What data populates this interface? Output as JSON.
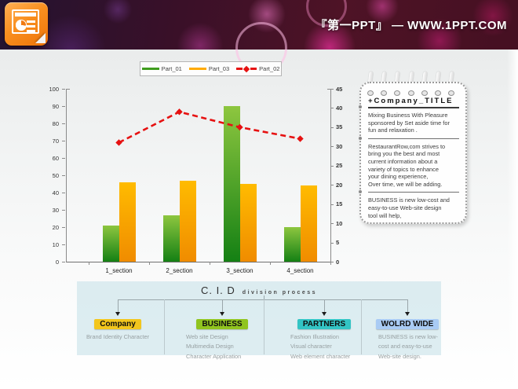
{
  "header": {
    "logo_icon": "powerpoint-icon",
    "brand": "『第一PPT』 — WWW.1PPT.COM"
  },
  "chart_data": {
    "type": "combo-bar-line",
    "title": "",
    "categories": [
      "1_section",
      "2_section",
      "3_section",
      "4_section"
    ],
    "series": [
      {
        "name": "Part_01",
        "type": "bar",
        "axis": "left",
        "values": [
          21,
          27,
          90,
          20
        ],
        "color_top": "#8dc63f",
        "color_bottom": "#148014",
        "legend_color": "#3f9c1e"
      },
      {
        "name": "Part_03",
        "type": "bar",
        "axis": "left",
        "values": [
          46,
          47,
          45,
          44
        ],
        "color_top": "#ffbb00",
        "color_bottom": "#f08c00",
        "legend_color": "#ffaa00"
      },
      {
        "name": "Part_02",
        "type": "line",
        "axis": "right",
        "values": [
          31,
          39,
          35,
          32
        ],
        "style": "dashed",
        "color": "#e61111"
      }
    ],
    "left_axis": {
      "min": 0,
      "max": 100,
      "step": 10
    },
    "right_axis": {
      "min": 0,
      "max": 45,
      "step": 5
    },
    "legend_position": "top",
    "grid": false
  },
  "notepad": {
    "title": "+Company_TITLE",
    "ring_count": 7,
    "paragraphs": [
      "Mixing Business With Pleasure\nsponsored by Set aside time for\nfun and relaxation .",
      "RestaurantRow,com strives to\nbring you the best and most\ncurrent information about a\nvariety of topics to enhance\nyour dining experience,\nOver time, we will be adding.",
      "BUSINESS is new low-cost and\neasy-to-use Web-site design\ntool will help,"
    ]
  },
  "diagram": {
    "title_main": "C. I. D",
    "title_sub": "division process",
    "columns": [
      {
        "label": "Company",
        "color": "#f3c61d",
        "align": "center",
        "items": [
          "Brand Identity Character"
        ]
      },
      {
        "label": "BUSINESS",
        "color": "#90c41f",
        "align": "left",
        "items": [
          "Web site Design",
          "Multimedia Design",
          "Character Application"
        ]
      },
      {
        "label": "PARTNERS",
        "color": "#33c4c4",
        "align": "left",
        "items": [
          "Fashion Illustration",
          "Visual character",
          "Web element character"
        ]
      },
      {
        "label": "WOLRD WIDE",
        "color": "#a9cbf4",
        "align": "left",
        "items": [
          "BUSINESS is new low-",
          "cost and easy-to-use",
          "Web-site design."
        ]
      }
    ]
  }
}
